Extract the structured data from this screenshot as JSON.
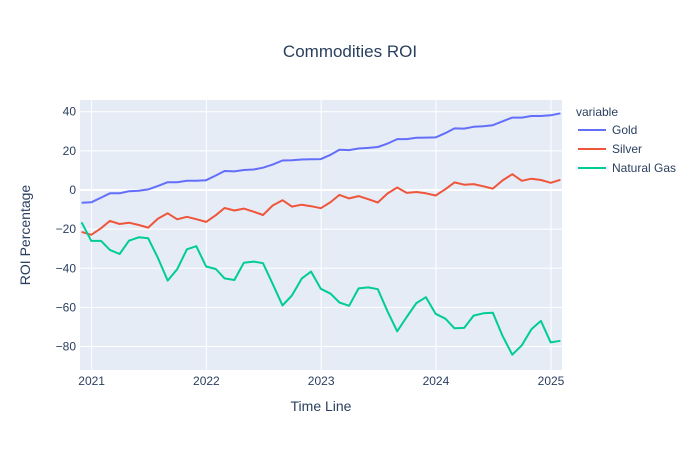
{
  "chart_data": {
    "type": "line",
    "title": "Commodities ROI",
    "xlabel": "Time Line",
    "ylabel": "ROI Percentage",
    "legend_title": "variable",
    "legend_position": "right",
    "grid": true,
    "xlim": [
      "2020-11-25",
      "2025-02-05"
    ],
    "ylim": [
      -92,
      46
    ],
    "x_ticks": [
      {
        "value": "2021-01-01",
        "label": "2021"
      },
      {
        "value": "2022-01-01",
        "label": "2022"
      },
      {
        "value": "2023-01-01",
        "label": "2023"
      },
      {
        "value": "2024-01-01",
        "label": "2024"
      },
      {
        "value": "2025-01-01",
        "label": "2025"
      }
    ],
    "y_ticks": [
      {
        "value": 40,
        "label": "40"
      },
      {
        "value": 20,
        "label": "20"
      },
      {
        "value": 0,
        "label": "0"
      },
      {
        "value": -20,
        "label": "−20"
      },
      {
        "value": -40,
        "label": "−40"
      },
      {
        "value": -60,
        "label": "−60"
      },
      {
        "value": -80,
        "label": "−80"
      }
    ],
    "x": [
      "2020-11-30",
      "2020-12-31",
      "2021-01-31",
      "2021-02-28",
      "2021-03-31",
      "2021-04-30",
      "2021-05-31",
      "2021-06-30",
      "2021-07-31",
      "2021-08-31",
      "2021-09-30",
      "2021-10-31",
      "2021-11-30",
      "2021-12-31",
      "2022-01-31",
      "2022-02-28",
      "2022-03-31",
      "2022-04-30",
      "2022-05-31",
      "2022-06-30",
      "2022-07-31",
      "2022-08-31",
      "2022-09-30",
      "2022-10-31",
      "2022-11-30",
      "2022-12-31",
      "2023-01-31",
      "2023-02-28",
      "2023-03-31",
      "2023-04-30",
      "2023-05-31",
      "2023-06-30",
      "2023-07-31",
      "2023-08-31",
      "2023-09-30",
      "2023-10-31",
      "2023-11-30",
      "2023-12-31",
      "2024-01-31",
      "2024-02-29",
      "2024-03-31",
      "2024-04-30",
      "2024-05-31",
      "2024-06-30",
      "2024-07-31",
      "2024-08-31",
      "2024-09-30",
      "2024-10-31",
      "2024-11-30",
      "2024-12-31",
      "2025-01-31"
    ],
    "series": [
      {
        "name": "Gold",
        "color": "#636efa",
        "values": [
          -6.5,
          -6.3,
          -3.9,
          -1.7,
          -1.7,
          -0.6,
          -0.4,
          0.3,
          2.1,
          4.0,
          4.0,
          4.7,
          4.7,
          5.0,
          7.4,
          9.7,
          9.5,
          10.2,
          10.5,
          11.4,
          13.0,
          15.1,
          15.2,
          15.6,
          15.7,
          15.8,
          18.0,
          20.6,
          20.4,
          21.2,
          21.5,
          22.0,
          23.7,
          26.0,
          26.0,
          26.7,
          26.8,
          26.9,
          29.1,
          31.5,
          31.4,
          32.3,
          32.6,
          33.1,
          35.1,
          37.0,
          37.0,
          37.8,
          37.8,
          38.2,
          39.2
        ]
      },
      {
        "name": "Silver",
        "color": "#ef553b",
        "values": [
          -21.4,
          -22.9,
          -19.5,
          -15.8,
          -17.4,
          -16.7,
          -17.9,
          -19.2,
          -14.6,
          -11.9,
          -15.0,
          -13.7,
          -14.9,
          -16.3,
          -12.9,
          -9.2,
          -10.5,
          -9.5,
          -11.1,
          -12.8,
          -7.9,
          -5.2,
          -8.5,
          -7.5,
          -8.3,
          -9.3,
          -6.2,
          -2.5,
          -4.3,
          -3.1,
          -4.7,
          -6.4,
          -1.8,
          1.3,
          -1.5,
          -1.0,
          -1.7,
          -2.8,
          0.4,
          3.9,
          2.7,
          3.0,
          1.9,
          0.7,
          4.9,
          8.1,
          4.7,
          5.8,
          5.1,
          3.7,
          5.2
        ]
      },
      {
        "name": "Natural Gas",
        "color": "#00cc96",
        "values": [
          -16.5,
          -26.0,
          -26.0,
          -30.6,
          -32.7,
          -25.9,
          -24.2,
          -24.7,
          -34.8,
          -46.3,
          -40.5,
          -30.3,
          -28.7,
          -39.1,
          -40.4,
          -45.2,
          -46.0,
          -37.2,
          -36.6,
          -37.4,
          -48.0,
          -59.0,
          -53.9,
          -45.3,
          -41.7,
          -50.5,
          -53.0,
          -57.5,
          -59.2,
          -50.3,
          -49.8,
          -50.7,
          -62.0,
          -72.2,
          -64.9,
          -57.8,
          -54.8,
          -63.3,
          -65.8,
          -70.7,
          -70.5,
          -64.2,
          -63.0,
          -62.7,
          -74.6,
          -84.2,
          -79.4,
          -71.1,
          -66.9,
          -77.9,
          -77.1
        ]
      }
    ]
  }
}
